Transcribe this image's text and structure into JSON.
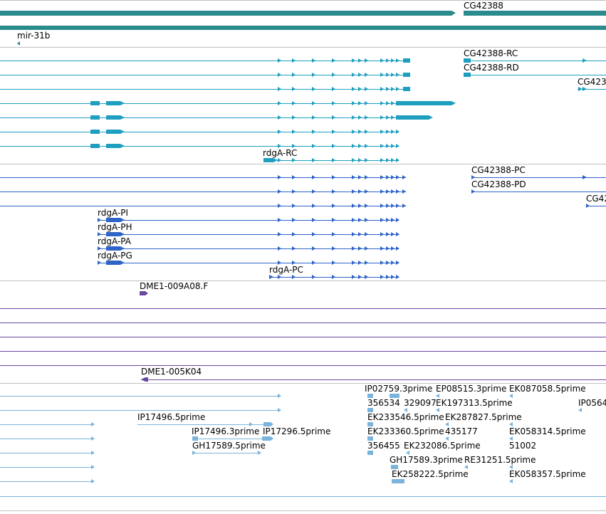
{
  "colors": {
    "gene": "#2a8a8c",
    "rna": "#1f9fc0",
    "protein": "#2e63c8",
    "clone": "#6a4aa0",
    "est": "#7ab3db",
    "divider": "#c0c0c0"
  },
  "tracks": {
    "genes": {
      "gene_label_cg42388": "CG42388",
      "mir_label": "mir-31b"
    },
    "transcripts": {
      "label_rc_cg": "CG42388-RC",
      "label_rd_cg": "CG42388-RD",
      "label_cut": "CG423",
      "label_rdga_rc": "rdgA-RC"
    },
    "proteins": {
      "label_pc_cg": "CG42388-PC",
      "label_pd_cg": "CG42388-PD",
      "label_cut": "CG42",
      "label_pi": "rdgA-PI",
      "label_ph": "rdgA-PH",
      "label_pa": "rdgA-PA",
      "label_pg": "rdgA-PG",
      "label_pc": "rdgA-PC"
    },
    "clones": {
      "label_1": "DME1-009A08.F",
      "label_2": "DME1-005K04"
    },
    "ests": {
      "l1": "IP02759.3prime",
      "l2": "EP08515.3prime",
      "l3": "EK087058.5prime",
      "l4": "356534",
      "l5": "329097",
      "l6": "EK197313.5prime",
      "l7": "IP0564",
      "l8": "EK233546.5prime",
      "l9": "EK287827.5prime",
      "l10": "IP17496.5prime",
      "l11": "IP17496.3prime",
      "l12": "IP17296.5prime",
      "l13": "EK233360.5prime",
      "l14": "435177",
      "l15": "EK058314.5prime",
      "l16": "GH17589.5prime",
      "l17": "356455",
      "l18": "EK232086.5prime",
      "l19": "51002",
      "l20": "GH17589.3prime",
      "l21": "RE31251.5prime",
      "l22": "EK258222.5prime",
      "l23": "EK058357.5prime"
    }
  }
}
